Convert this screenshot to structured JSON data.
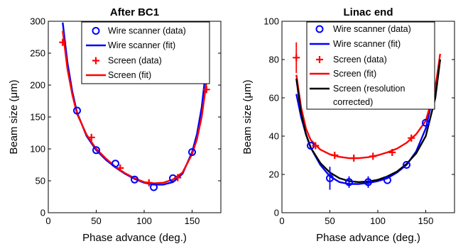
{
  "chart_data": [
    {
      "type": "line",
      "title": "After BC1",
      "xlabel": "Phase advance (deg.)",
      "ylabel": "Beam size (μm)",
      "xlim": [
        0,
        180
      ],
      "ylim": [
        0,
        300
      ],
      "xticks": [
        0,
        50,
        100,
        150
      ],
      "yticks": [
        0,
        50,
        100,
        150,
        200,
        250,
        300
      ],
      "grid": false,
      "legend_position": "top-right",
      "series": [
        {
          "name": "Wire scanner (data)",
          "kind": "markers-circle",
          "color": "#0000ff",
          "x": [
            30,
            50,
            70,
            90,
            110,
            130,
            150
          ],
          "y": [
            160,
            98,
            77,
            52,
            40,
            54,
            95
          ]
        },
        {
          "name": "Wire scanner (fit)",
          "kind": "line",
          "color": "#0000ff",
          "x": [
            15,
            20,
            25,
            30,
            40,
            50,
            60,
            70,
            80,
            90,
            100,
            110,
            120,
            130,
            140,
            150,
            155,
            160,
            165
          ],
          "y": [
            298,
            235,
            190,
            157,
            120,
            98,
            83,
            71,
            61,
            53,
            47,
            44,
            44,
            48,
            61,
            95,
            123,
            165,
            232
          ]
        },
        {
          "name": "Screen (data)",
          "kind": "markers-plus",
          "color": "#ff0000",
          "x": [
            15,
            45,
            75,
            105,
            135,
            165
          ],
          "y": [
            267,
            118,
            70,
            47,
            55,
            193
          ]
        },
        {
          "name": "Screen (fit)",
          "kind": "line",
          "color": "#ff0000",
          "x": [
            15,
            20,
            25,
            30,
            40,
            50,
            60,
            70,
            80,
            90,
            100,
            110,
            120,
            130,
            140,
            150,
            155,
            160,
            165
          ],
          "y": [
            285,
            225,
            185,
            155,
            122,
            100,
            85,
            72,
            62,
            54,
            48,
            46,
            47,
            52,
            63,
            92,
            115,
            150,
            205
          ]
        }
      ]
    },
    {
      "type": "line",
      "title": "Linac end",
      "xlabel": "Phase advance (deg.)",
      "ylabel": "Beam size (μm)",
      "xlim": [
        0,
        180
      ],
      "ylim": [
        0,
        100
      ],
      "xticks": [
        0,
        50,
        100,
        150
      ],
      "yticks": [
        0,
        20,
        40,
        60,
        80,
        100
      ],
      "grid": false,
      "legend_position": "top-right",
      "legend_lines": {
        "series_0": [
          "Wire scanner (data)"
        ],
        "series_1": [
          "Wire scanner (fit)"
        ],
        "series_2": [
          "Screen (data)"
        ],
        "series_3": [
          "Screen (fit)"
        ],
        "series_4": [
          "Screen (resolution",
          "corrected)"
        ]
      },
      "series": [
        {
          "name": "Wire scanner (data)",
          "kind": "markers-circle",
          "color": "#0000ff",
          "x": [
            30,
            50,
            70,
            90,
            110,
            130,
            150
          ],
          "y": [
            35,
            18,
            16,
            16,
            17,
            25,
            47
          ],
          "yerr": [
            0,
            6,
            3,
            3,
            0,
            0,
            0
          ]
        },
        {
          "name": "Wire scanner (fit)",
          "kind": "line",
          "color": "#0000ff",
          "x": [
            15,
            20,
            25,
            30,
            40,
            50,
            60,
            70,
            80,
            90,
            100,
            110,
            120,
            130,
            140,
            150,
            160,
            165
          ],
          "y": [
            62,
            50,
            41,
            34,
            25,
            19,
            16,
            15,
            15,
            15.5,
            16.5,
            18,
            21,
            25,
            32,
            44,
            66,
            80
          ]
        },
        {
          "name": "Screen (data)",
          "kind": "markers-plus",
          "color": "#ff0000",
          "x": [
            15,
            35,
            55,
            75,
            95,
            115,
            135,
            155
          ],
          "y": [
            81,
            35,
            30,
            28.5,
            29.5,
            31.5,
            39,
            57
          ],
          "yerr": [
            8,
            0,
            0,
            0,
            0,
            0,
            0,
            0
          ]
        },
        {
          "name": "Screen (fit)",
          "kind": "line",
          "color": "#ff0000",
          "x": [
            15,
            20,
            25,
            30,
            40,
            50,
            60,
            70,
            80,
            90,
            100,
            110,
            120,
            130,
            140,
            150,
            160,
            165
          ],
          "y": [
            72,
            55,
            44,
            38,
            33,
            30.5,
            29.2,
            28.5,
            28.5,
            29,
            30,
            31.5,
            33.5,
            36.5,
            41,
            48,
            65,
            83
          ]
        },
        {
          "name": "Screen (resolution corrected)",
          "kind": "line",
          "color": "#000000",
          "x": [
            15,
            20,
            25,
            30,
            40,
            50,
            60,
            70,
            80,
            90,
            100,
            110,
            120,
            130,
            140,
            150,
            160,
            165
          ],
          "y": [
            70,
            52,
            41,
            34,
            26,
            21,
            18,
            16.5,
            16,
            16.3,
            17.2,
            19,
            21.5,
            25.5,
            31,
            40,
            60,
            80
          ]
        }
      ]
    }
  ]
}
